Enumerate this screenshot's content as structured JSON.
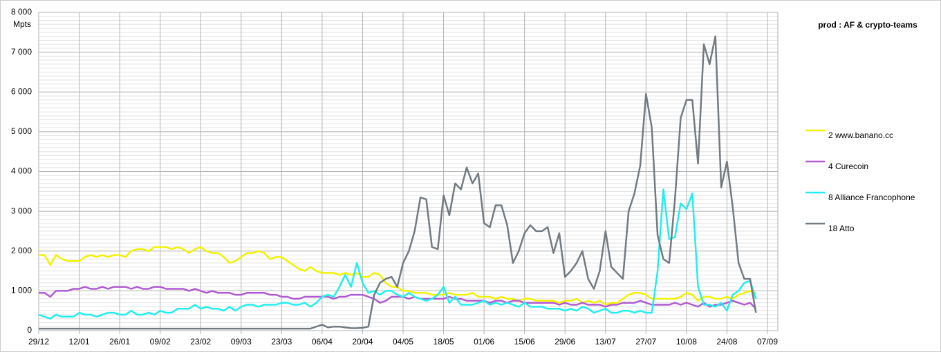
{
  "chart_data": {
    "type": "line",
    "title": "prod : AF & crypto-teams",
    "y_label": "Mpts",
    "categories": [
      "29/12",
      null,
      null,
      null,
      null,
      null,
      null,
      "12/01",
      null,
      null,
      null,
      null,
      null,
      null,
      "26/01",
      null,
      null,
      null,
      null,
      null,
      null,
      "09/02",
      null,
      null,
      null,
      null,
      null,
      null,
      "23/02",
      null,
      null,
      null,
      null,
      null,
      null,
      "09/03",
      null,
      null,
      null,
      null,
      null,
      null,
      "23/03",
      null,
      null,
      null,
      null,
      null,
      null,
      "06/04",
      null,
      null,
      null,
      null,
      null,
      null,
      "20/04",
      null,
      null,
      null,
      null,
      null,
      null,
      "04/05",
      null,
      null,
      null,
      null,
      null,
      null,
      "18/05",
      null,
      null,
      null,
      null,
      null,
      null,
      "01/06",
      null,
      null,
      null,
      null,
      null,
      null,
      "15/06",
      null,
      null,
      null,
      null,
      null,
      null,
      "29/06",
      null,
      null,
      null,
      null,
      null,
      null,
      "13/07",
      null,
      null,
      null,
      null,
      null,
      null,
      "27/07",
      null,
      null,
      null,
      null,
      null,
      null,
      "10/08",
      null,
      null,
      null,
      null,
      null,
      null,
      "24/08",
      null,
      null,
      null,
      null,
      null,
      null,
      "07/09"
    ],
    "series": [
      {
        "name": "2 www.banano.cc",
        "color": "#f2f200",
        "values": [
          1900,
          1900,
          1650,
          1900,
          1800,
          1750,
          1750,
          1750,
          1850,
          1900,
          1850,
          1900,
          1850,
          1900,
          1900,
          1850,
          2000,
          2050,
          2050,
          2000,
          2100,
          2100,
          2100,
          2050,
          2100,
          2050,
          1950,
          2050,
          2100,
          2000,
          1950,
          1950,
          1850,
          1700,
          1750,
          1850,
          1950,
          1950,
          2000,
          1950,
          1800,
          1850,
          1850,
          1750,
          1650,
          1550,
          1500,
          1600,
          1500,
          1450,
          1450,
          1450,
          1400,
          1450,
          1400,
          1450,
          1350,
          1350,
          1450,
          1400,
          1200,
          1100,
          1100,
          1000,
          1000,
          950,
          950,
          950,
          900,
          900,
          900,
          950,
          900,
          900,
          900,
          950,
          850,
          850,
          850,
          800,
          850,
          800,
          800,
          750,
          800,
          800,
          750,
          750,
          750,
          750,
          700,
          750,
          750,
          800,
          700,
          750,
          700,
          750,
          650,
          700,
          700,
          800,
          900,
          950,
          950,
          900,
          800,
          800,
          800,
          800,
          800,
          850,
          950,
          900,
          750,
          850,
          850,
          800,
          800,
          850,
          800,
          900,
          950,
          1000,
          950,
          null,
          null
        ]
      },
      {
        "name": "4 Curecoin",
        "color": "#b05ad0",
        "values": [
          950,
          950,
          850,
          1000,
          1000,
          1000,
          1050,
          1050,
          1100,
          1050,
          1050,
          1100,
          1050,
          1100,
          1100,
          1100,
          1050,
          1100,
          1050,
          1050,
          1100,
          1100,
          1050,
          1050,
          1050,
          1050,
          1000,
          1050,
          1000,
          950,
          1000,
          950,
          950,
          950,
          900,
          900,
          950,
          950,
          950,
          950,
          900,
          900,
          850,
          850,
          800,
          800,
          850,
          850,
          850,
          850,
          850,
          800,
          850,
          850,
          900,
          900,
          900,
          850,
          800,
          700,
          750,
          850,
          850,
          850,
          800,
          850,
          800,
          800,
          800,
          800,
          800,
          850,
          800,
          800,
          750,
          750,
          750,
          750,
          700,
          750,
          750,
          700,
          750,
          750,
          700,
          700,
          700,
          700,
          700,
          700,
          650,
          700,
          650,
          650,
          700,
          650,
          650,
          650,
          600,
          650,
          650,
          700,
          700,
          700,
          750,
          700,
          650,
          650,
          650,
          650,
          700,
          650,
          700,
          650,
          600,
          700,
          600,
          650,
          650,
          700,
          750,
          700,
          650,
          700,
          550,
          null,
          null
        ]
      },
      {
        "name": "8 Alliance Francophone",
        "color": "#22eeee",
        "values": [
          400,
          350,
          300,
          400,
          350,
          350,
          350,
          450,
          400,
          400,
          350,
          400,
          450,
          450,
          400,
          400,
          500,
          400,
          400,
          450,
          400,
          500,
          450,
          450,
          550,
          550,
          550,
          650,
          550,
          600,
          550,
          550,
          500,
          600,
          500,
          600,
          650,
          650,
          600,
          650,
          650,
          650,
          700,
          700,
          650,
          650,
          700,
          600,
          700,
          850,
          900,
          850,
          1100,
          1400,
          1100,
          1700,
          1200,
          950,
          1000,
          900,
          1000,
          1000,
          900,
          850,
          950,
          850,
          800,
          750,
          800,
          900,
          1100,
          700,
          850,
          650,
          650,
          650,
          700,
          750,
          650,
          700,
          650,
          700,
          650,
          600,
          700,
          600,
          600,
          600,
          550,
          550,
          550,
          500,
          550,
          500,
          600,
          550,
          450,
          500,
          550,
          450,
          450,
          500,
          500,
          450,
          500,
          450,
          450,
          1500,
          3550,
          2300,
          2350,
          3200,
          3050,
          3450,
          1100,
          650,
          650,
          600,
          700,
          500,
          900,
          1000,
          1200,
          1250,
          800,
          null,
          null
        ]
      },
      {
        "name": "18 Atto",
        "color": "#727a82",
        "values": [
          50,
          50,
          50,
          50,
          50,
          50,
          50,
          50,
          50,
          50,
          50,
          50,
          50,
          50,
          50,
          50,
          50,
          50,
          50,
          50,
          50,
          50,
          50,
          50,
          50,
          50,
          50,
          50,
          50,
          50,
          50,
          50,
          50,
          50,
          50,
          50,
          50,
          50,
          50,
          50,
          50,
          50,
          50,
          50,
          50,
          50,
          50,
          50,
          100,
          150,
          80,
          100,
          100,
          80,
          60,
          60,
          70,
          100,
          900,
          1200,
          1300,
          1350,
          1100,
          1700,
          2000,
          2500,
          3350,
          3300,
          2100,
          2050,
          3400,
          2900,
          3700,
          3550,
          4100,
          3700,
          3950,
          2700,
          2600,
          3150,
          3150,
          2650,
          1700,
          2000,
          2450,
          2650,
          2500,
          2500,
          2600,
          1950,
          2450,
          1350,
          1500,
          1700,
          2000,
          1300,
          1050,
          1500,
          2500,
          1600,
          1450,
          1300,
          3000,
          3450,
          4150,
          5950,
          5100,
          2400,
          1800,
          1700,
          3300,
          5350,
          5800,
          5800,
          4200,
          7200,
          6700,
          7400,
          3600,
          4250,
          3100,
          1700,
          1300,
          1300,
          450,
          null,
          null
        ]
      }
    ],
    "ylim": [
      0,
      8000
    ],
    "yticks": [
      0,
      {
        "value": 1000,
        "label": "1 000"
      },
      {
        "value": 2000,
        "label": "2 000"
      },
      {
        "value": 3000,
        "label": "3 000"
      },
      {
        "value": 4000,
        "label": "4 000"
      },
      {
        "value": 5000,
        "label": "5 000"
      },
      {
        "value": 6000,
        "label": "6 000"
      },
      {
        "value": 7000,
        "label": "7 000"
      },
      {
        "value": 8000,
        "label": "8 000"
      }
    ],
    "grid": true,
    "legend": "right"
  }
}
